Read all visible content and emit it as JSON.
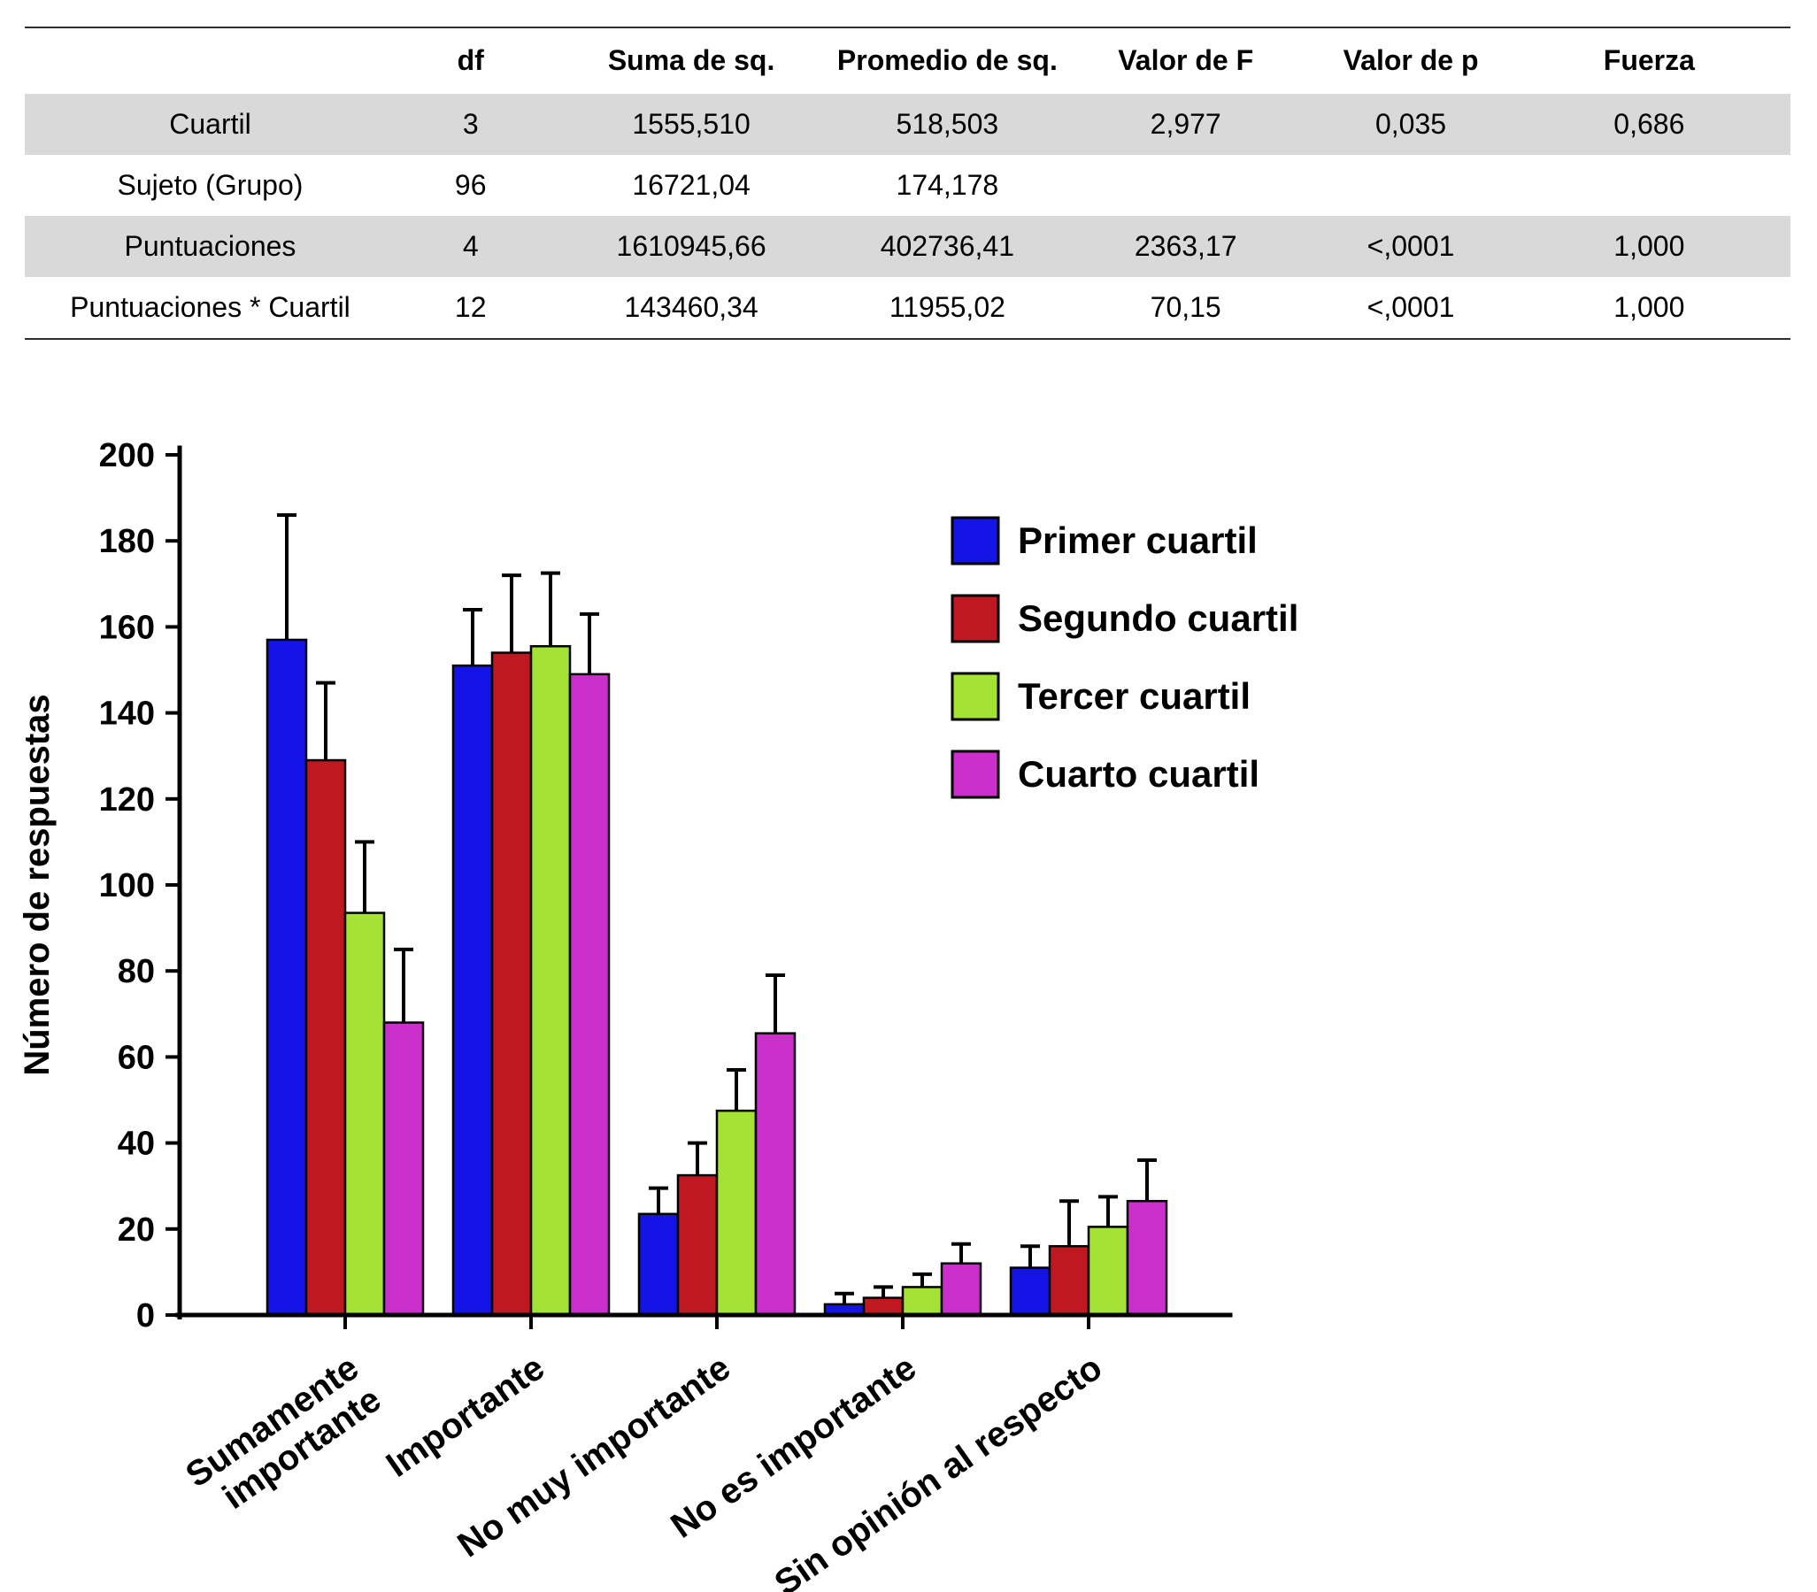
{
  "table": {
    "headers": [
      "",
      "df",
      "Suma de sq.",
      "Promedio de sq.",
      "Valor de F",
      "Valor de p",
      "Fuerza"
    ],
    "rows": [
      {
        "label": "Cuartil",
        "cells": [
          "3",
          "1555,510",
          "518,503",
          "2,977",
          "0,035",
          "0,686"
        ],
        "shaded": true
      },
      {
        "label": "Sujeto (Grupo)",
        "cells": [
          "96",
          "16721,04",
          "174,178",
          "",
          "",
          ""
        ],
        "shaded": false
      },
      {
        "label": "Puntuaciones",
        "cells": [
          "4",
          "1610945,66",
          "402736,41",
          "2363,17",
          "<,0001",
          "1,000"
        ],
        "shaded": true
      },
      {
        "label": "Puntuaciones * Cuartil",
        "cells": [
          "12",
          "143460,34",
          "11955,02",
          "70,15",
          "<,0001",
          "1,000"
        ],
        "shaded": false
      }
    ],
    "shade_color": "#d9d9d9"
  },
  "chart_data": {
    "type": "bar",
    "title": "",
    "xlabel": "",
    "ylabel": "Número de respuestas",
    "ylim": [
      0,
      200
    ],
    "ytick_step": 20,
    "grid": false,
    "legend_position": "upper right",
    "categories": [
      "Sumamente\nimportante",
      "Importante",
      "No muy importante",
      "No es importante",
      "Sin opinión al respecto"
    ],
    "series": [
      {
        "name": "Primer cuartil",
        "color": "#1414e6",
        "values": [
          157,
          151,
          23.5,
          2.5,
          11
        ],
        "errors_plus": [
          29,
          13,
          6,
          2.5,
          5
        ]
      },
      {
        "name": "Segundo cuartil",
        "color": "#c01820",
        "values": [
          129,
          154,
          32.5,
          4,
          16
        ],
        "errors_plus": [
          18,
          18,
          7.5,
          2.5,
          10.5
        ]
      },
      {
        "name": "Tercer cuartil",
        "color": "#a4e234",
        "values": [
          93.5,
          155.5,
          47.5,
          6.5,
          20.5
        ],
        "errors_plus": [
          16.5,
          17,
          9.5,
          3,
          7
        ]
      },
      {
        "name": "Cuarto cuartil",
        "color": "#cb2fcb",
        "values": [
          68,
          149,
          65.5,
          12,
          26.5
        ],
        "errors_plus": [
          17,
          14,
          13.5,
          4.5,
          9.5
        ]
      }
    ]
  }
}
